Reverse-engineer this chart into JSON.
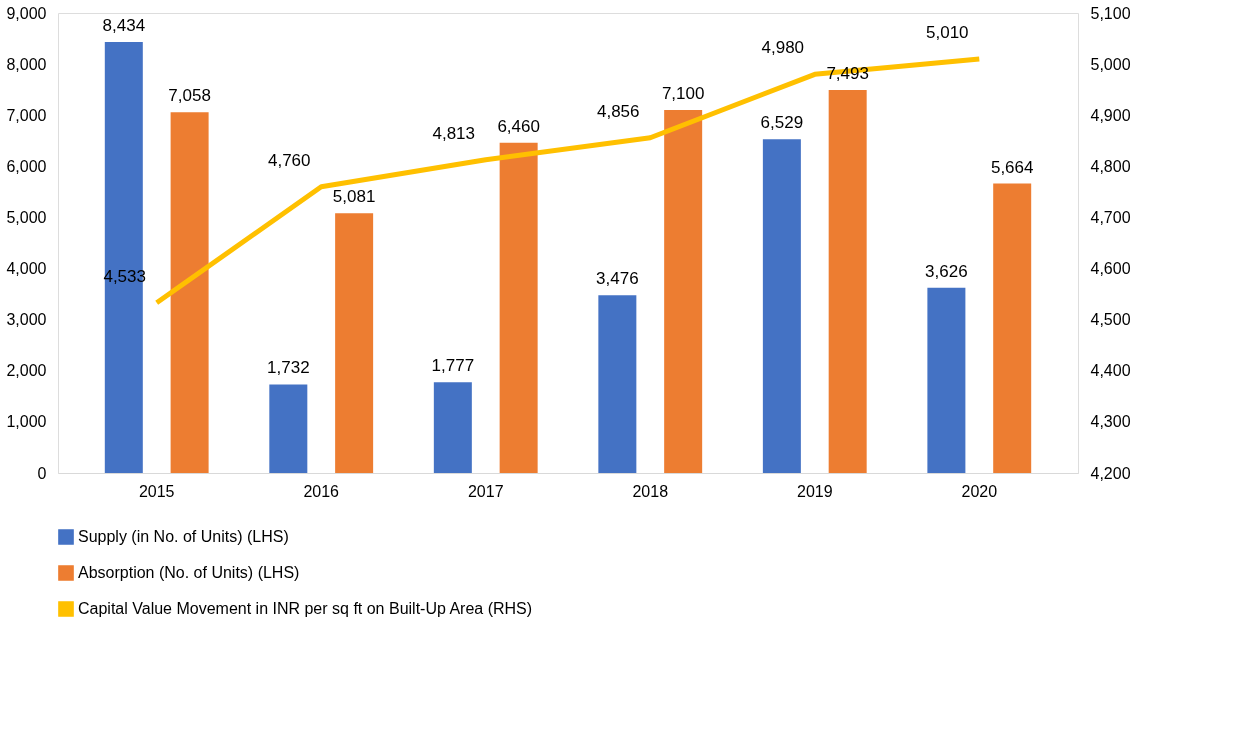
{
  "chart_data": {
    "type": "bar",
    "categories": [
      "2015",
      "2016",
      "2017",
      "2018",
      "2019",
      "2020"
    ],
    "series": [
      {
        "name": "Supply (in No. of Units) (LHS)",
        "color": "#4472c4",
        "values": [
          8434,
          1732,
          1777,
          3476,
          6529,
          3626
        ],
        "value_labels": [
          "8,434",
          "1,732",
          "1,777",
          "3,476",
          "6,529",
          "3,626"
        ]
      },
      {
        "name": "Absorption (No. of Units) (LHS)",
        "color": "#ed7d31",
        "values": [
          7058,
          5081,
          6460,
          7100,
          7493,
          5664
        ],
        "value_labels": [
          "7,058",
          "5,081",
          "6,460",
          "7,100",
          "7,493",
          "5,664"
        ]
      },
      {
        "name": "Capital Value Movement in INR per sq ft on Built-Up Area (RHS)",
        "color": "#ffc000",
        "type": "line",
        "axis": "y2",
        "values": [
          4533,
          4760,
          4813,
          4856,
          4980,
          5010
        ],
        "value_labels": [
          "4,533",
          "4,760",
          "4,813",
          "4,856",
          "4,980",
          "5,010"
        ]
      }
    ],
    "ylim": [
      0,
      9000
    ],
    "yticks": [
      0,
      {
        "value": 1000,
        "label": "1,000"
      },
      {
        "value": 2000,
        "label": "2,000"
      },
      {
        "value": 3000,
        "label": "3,000"
      },
      {
        "value": 4000,
        "label": "4,000"
      },
      {
        "value": 5000,
        "label": "5,000"
      },
      {
        "value": 6000,
        "label": "6,000"
      },
      {
        "value": 7000,
        "label": "7,000"
      },
      {
        "value": 8000,
        "label": "8,000"
      },
      {
        "value": 9000,
        "label": "9,000"
      }
    ],
    "y2lim": [
      4200,
      5100
    ],
    "y2ticks": [
      {
        "value": 4200,
        "label": "4,200"
      },
      {
        "value": 4300,
        "label": "4,300"
      },
      {
        "value": 4400,
        "label": "4,400"
      },
      {
        "value": 4500,
        "label": "4,500"
      },
      {
        "value": 4600,
        "label": "4,600"
      },
      {
        "value": 4700,
        "label": "4,700"
      },
      {
        "value": 4800,
        "label": "4,800"
      },
      {
        "value": 4900,
        "label": "4,900"
      },
      {
        "value": 5000,
        "label": "5,000"
      },
      {
        "value": 5100,
        "label": "5,100"
      }
    ],
    "data_labels": true,
    "legend": "bottom"
  }
}
